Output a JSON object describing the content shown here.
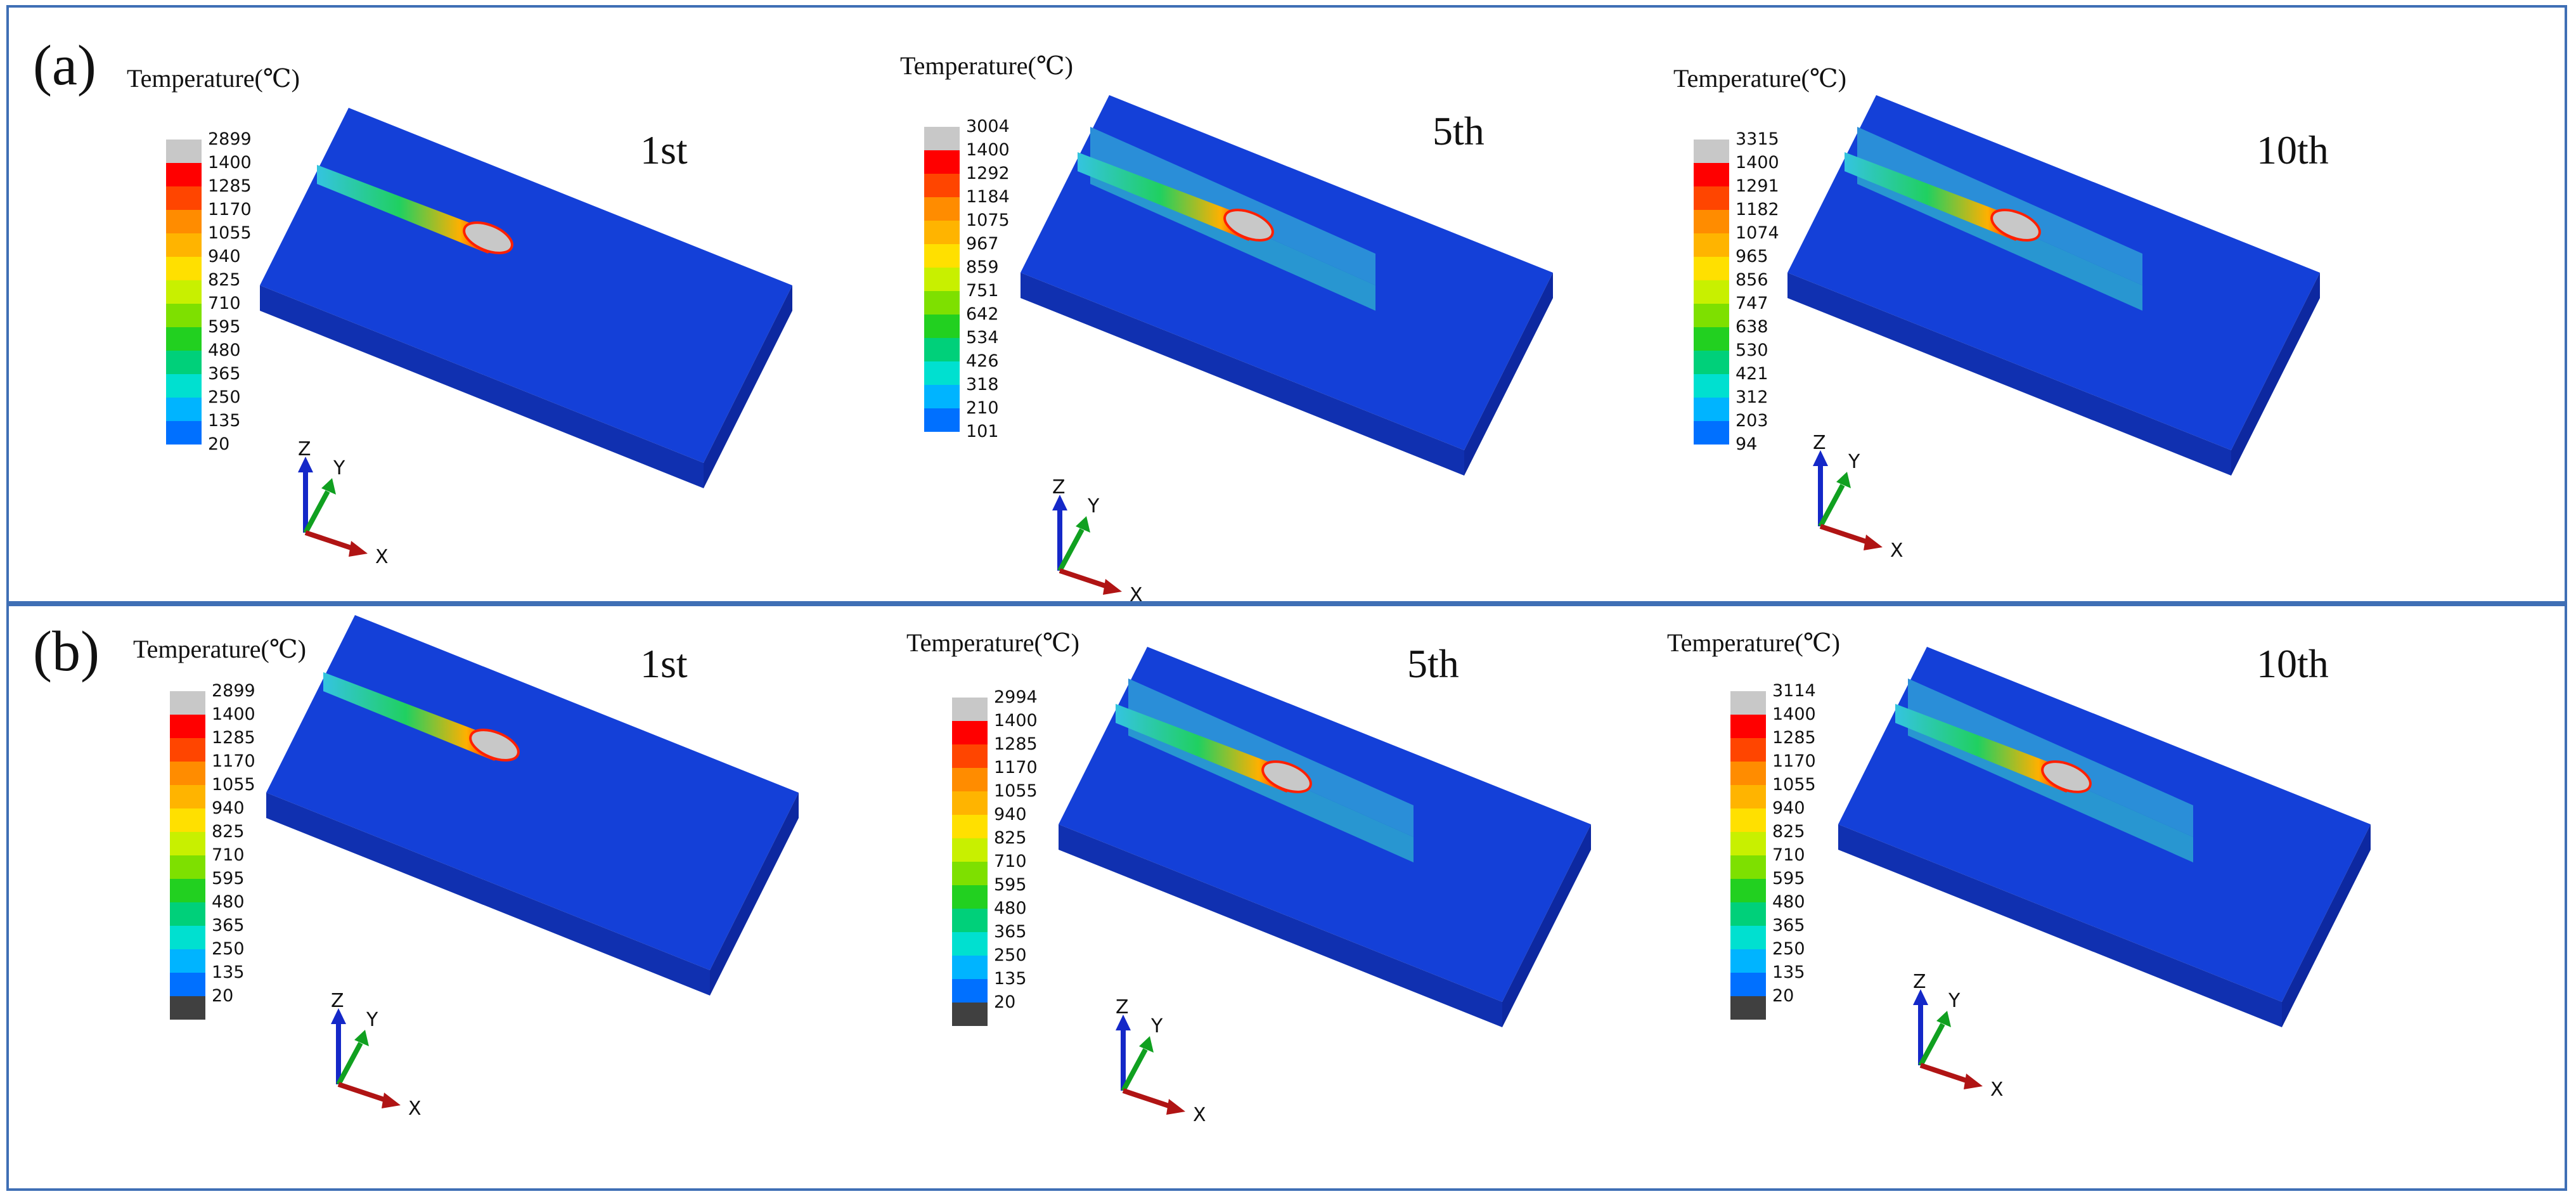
{
  "colors": {
    "frame": "#3f6fb5",
    "plate": "#1440d8",
    "melt_pool": "#c8c8c8",
    "axis_x": "#b01414",
    "axis_y": "#10a020",
    "axis_z": "#1428c8"
  },
  "panels": [
    {
      "label": "(a)",
      "plots": [
        {
          "legend_title": "Temperature(℃)",
          "step": "1st",
          "ticks": [
            "2899",
            "1400",
            "1285",
            "1170",
            "1055",
            "940",
            "825",
            "710",
            "595",
            "480",
            "365",
            "250",
            "135",
            "20"
          ],
          "has_bottom_gray": false,
          "wall": false,
          "axes": {
            "z": "Z",
            "y": "Y",
            "x": "X"
          }
        },
        {
          "legend_title": "Temperature(℃)",
          "step": "5th",
          "ticks": [
            "3004",
            "1400",
            "1292",
            "1184",
            "1075",
            "967",
            "859",
            "751",
            "642",
            "534",
            "426",
            "318",
            "210",
            "101"
          ],
          "has_bottom_gray": false,
          "wall": true,
          "axes": {
            "z": "Z",
            "y": "Y",
            "x": "X"
          }
        },
        {
          "legend_title": "Temperature(℃)",
          "step": "10th",
          "ticks": [
            "3315",
            "1400",
            "1291",
            "1182",
            "1074",
            "965",
            "856",
            "747",
            "638",
            "530",
            "421",
            "312",
            "203",
            "94"
          ],
          "has_bottom_gray": false,
          "wall": true,
          "axes": {
            "z": "Z",
            "y": "Y",
            "x": "X"
          }
        }
      ]
    },
    {
      "label": "(b)",
      "plots": [
        {
          "legend_title": "Temperature(℃)",
          "step": "1st",
          "ticks": [
            "2899",
            "1400",
            "1285",
            "1170",
            "1055",
            "940",
            "825",
            "710",
            "595",
            "480",
            "365",
            "250",
            "135",
            "20"
          ],
          "has_bottom_gray": true,
          "wall": false,
          "axes": {
            "z": "Z",
            "y": "Y",
            "x": "X"
          }
        },
        {
          "legend_title": "Temperature(℃)",
          "step": "5th",
          "ticks": [
            "2994",
            "1400",
            "1285",
            "1170",
            "1055",
            "940",
            "825",
            "710",
            "595",
            "480",
            "365",
            "250",
            "135",
            "20"
          ],
          "has_bottom_gray": true,
          "wall": true,
          "axes": {
            "z": "Z",
            "y": "Y",
            "x": "X"
          }
        },
        {
          "legend_title": "Temperature(℃)",
          "step": "10th",
          "ticks": [
            "3114",
            "1400",
            "1285",
            "1170",
            "1055",
            "940",
            "825",
            "710",
            "595",
            "480",
            "365",
            "250",
            "135",
            "20"
          ],
          "has_bottom_gray": true,
          "wall": true,
          "axes": {
            "z": "Z",
            "y": "Y",
            "x": "X"
          }
        }
      ]
    }
  ]
}
